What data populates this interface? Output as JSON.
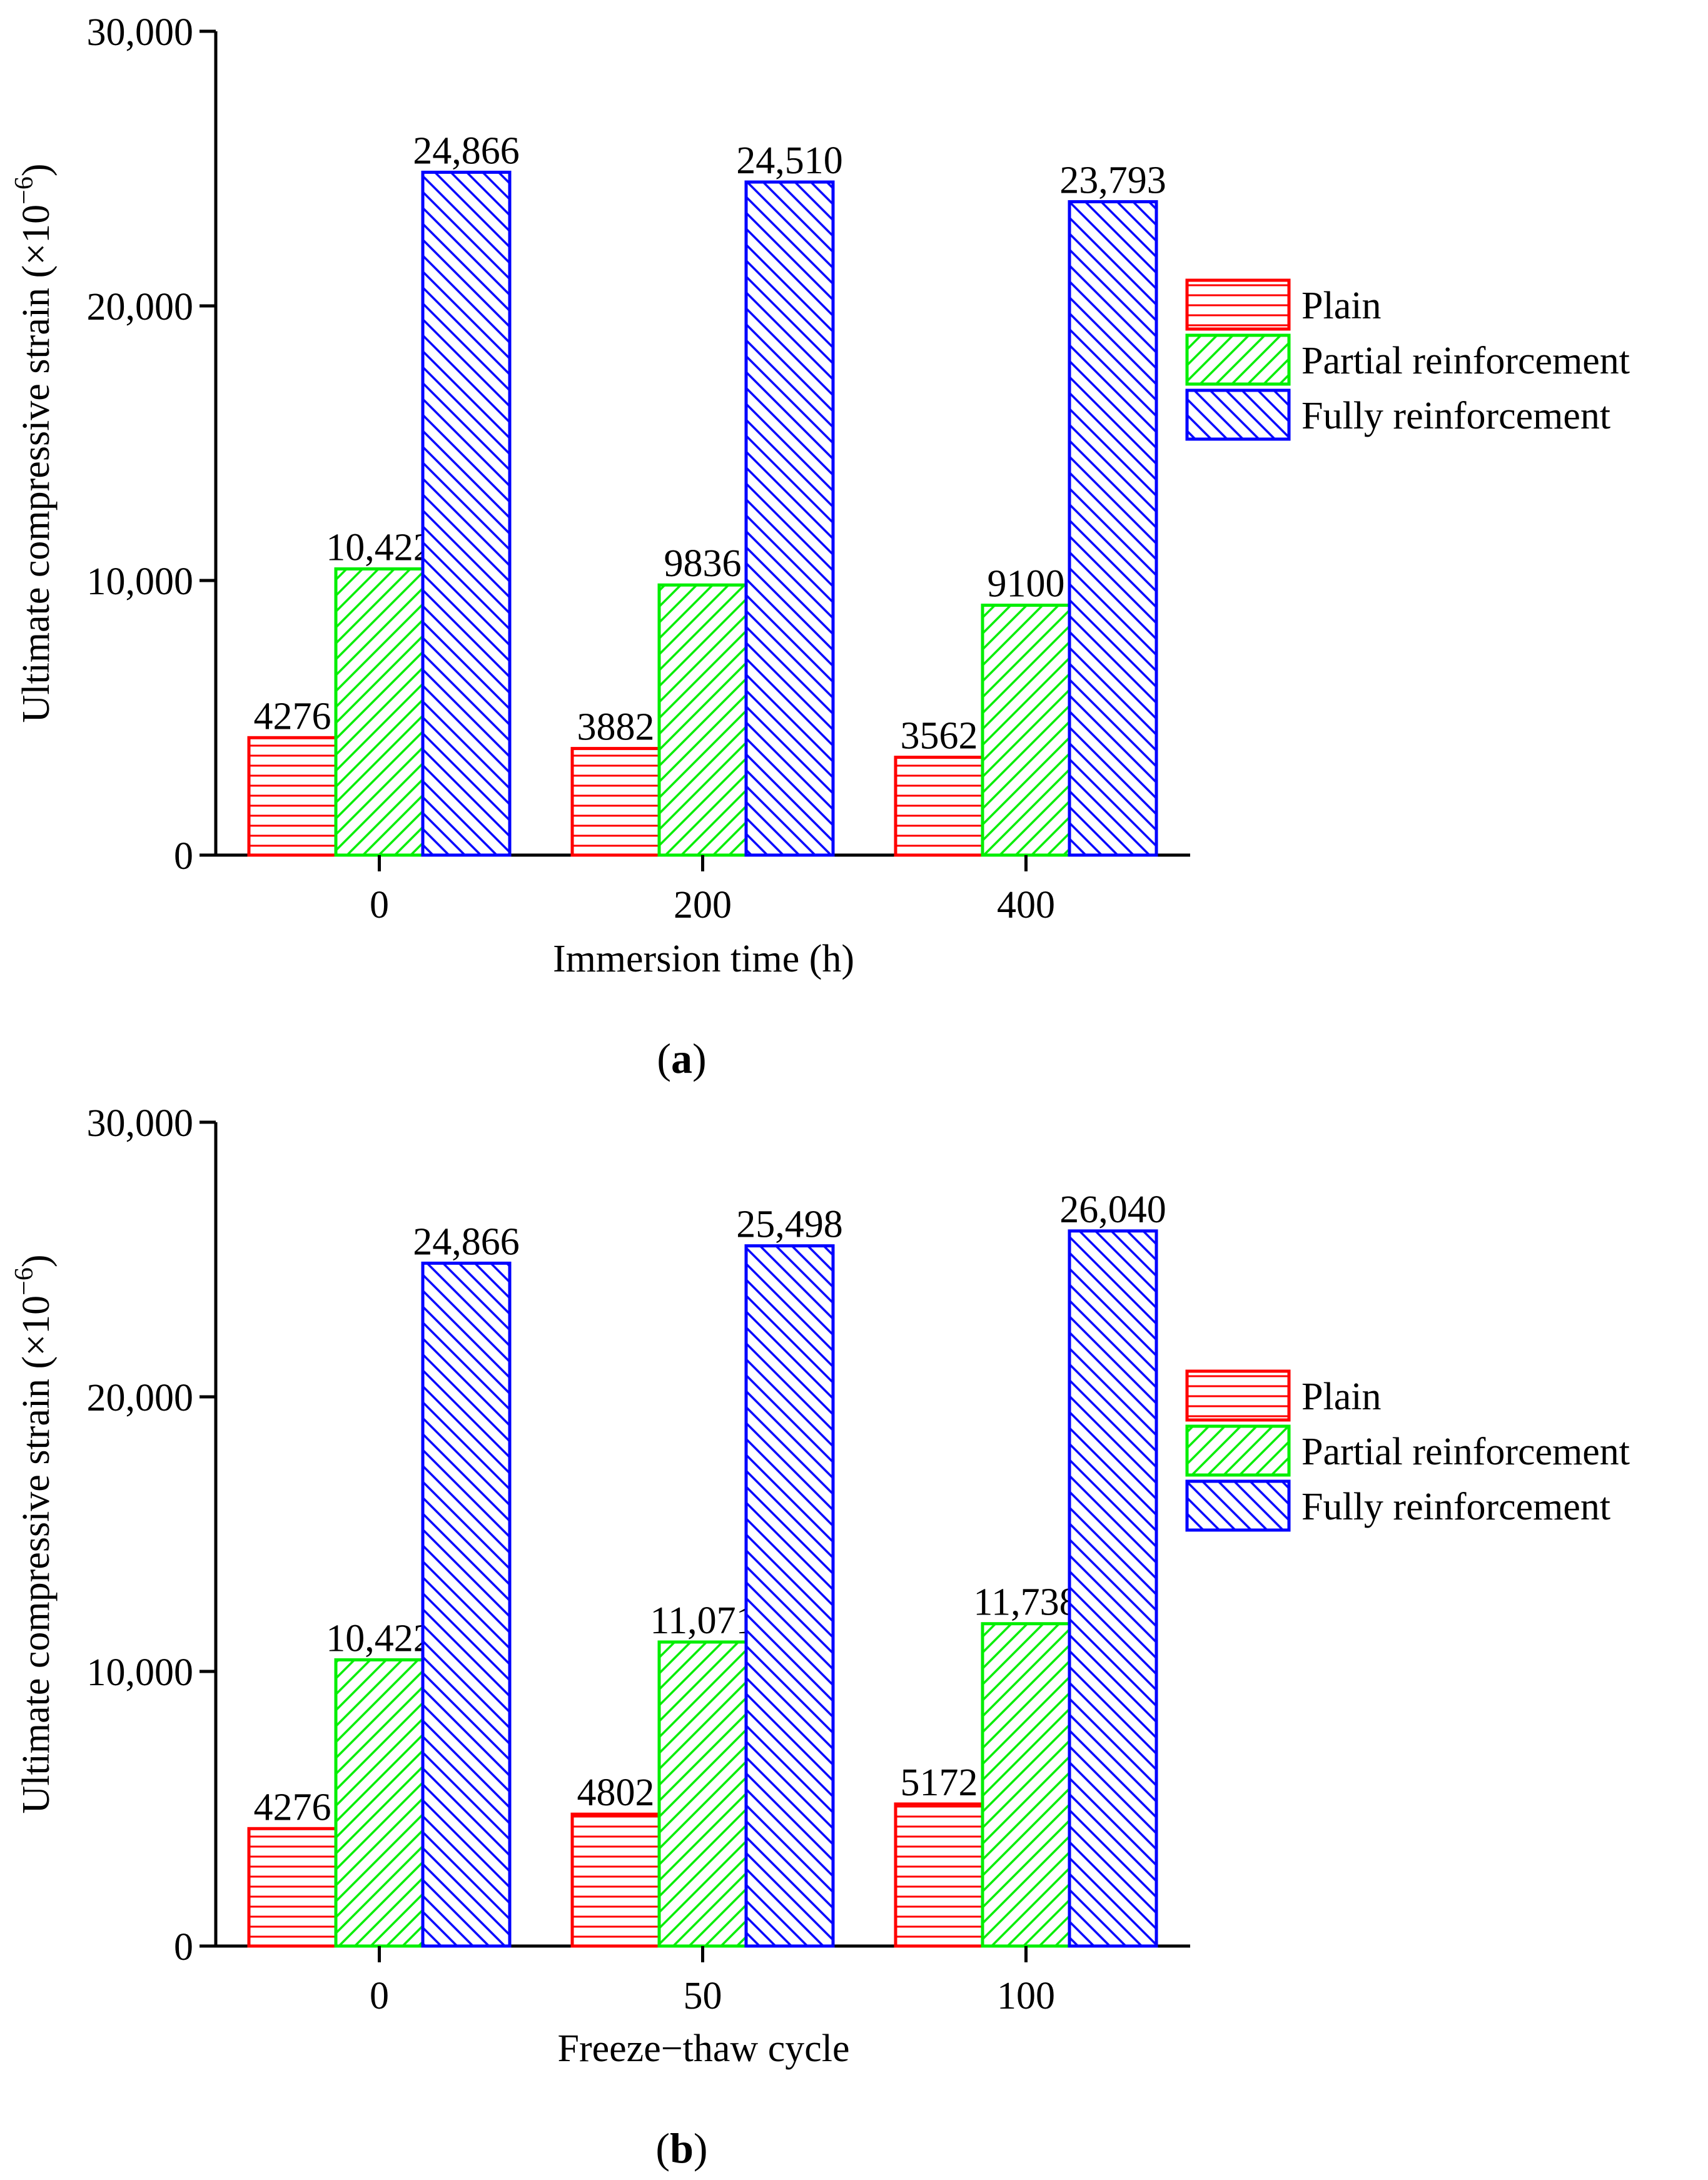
{
  "chart_data": [
    {
      "type": "bar",
      "panel_label": "a",
      "categories": [
        "0",
        "200",
        "400"
      ],
      "xlabel": "Immersion  time (h)",
      "ylabel": "Ultimate  compressive  strain (×10",
      "ylabel_exp": "−6",
      "ylabel_close": ")",
      "ylim": [
        0,
        30000
      ],
      "yticks": [
        0,
        10000,
        20000,
        30000
      ],
      "ytick_labels": [
        "0",
        "10,000",
        "20,000",
        "30,000"
      ],
      "legend_position": "right",
      "series": [
        {
          "name": "Plain",
          "color": "#ff0000",
          "pattern": "horizontal",
          "values": [
            4276,
            3882,
            3562
          ],
          "labels": [
            "4276",
            "3882",
            "3562"
          ]
        },
        {
          "name": "Partial reinforcement",
          "color": "#00ee00",
          "pattern": "diagonal-up",
          "values": [
            10422,
            9836,
            9100
          ],
          "labels": [
            "10,422",
            "9836",
            "9100"
          ]
        },
        {
          "name": "Fully reinforcement",
          "color": "#0000ff",
          "pattern": "diagonal-down",
          "values": [
            24866,
            24510,
            23793
          ],
          "labels": [
            "24,866",
            "24,510",
            "23,793"
          ]
        }
      ]
    },
    {
      "type": "bar",
      "panel_label": "b",
      "categories": [
        "0",
        "50",
        "100"
      ],
      "xlabel": "Freeze−thaw  cycle",
      "ylabel": "Ultimate  compressive  strain (×10",
      "ylabel_exp": "−6",
      "ylabel_close": ")",
      "ylim": [
        0,
        30000
      ],
      "yticks": [
        0,
        10000,
        20000,
        30000
      ],
      "ytick_labels": [
        "0",
        "10,000",
        "20,000",
        "30,000"
      ],
      "legend_position": "right",
      "series": [
        {
          "name": "Plain",
          "color": "#ff0000",
          "pattern": "horizontal",
          "values": [
            4276,
            4802,
            5172
          ],
          "labels": [
            "4276",
            "4802",
            "5172"
          ]
        },
        {
          "name": "Partial reinforcement",
          "color": "#00ee00",
          "pattern": "diagonal-up",
          "values": [
            10422,
            11071,
            11738
          ],
          "labels": [
            "10,422",
            "11,071",
            "11,738"
          ]
        },
        {
          "name": "Fully reinforcement",
          "color": "#0000ff",
          "pattern": "diagonal-down",
          "values": [
            24866,
            25498,
            26040
          ],
          "labels": [
            "24,866",
            "25,498",
            "26,040"
          ]
        }
      ]
    }
  ]
}
